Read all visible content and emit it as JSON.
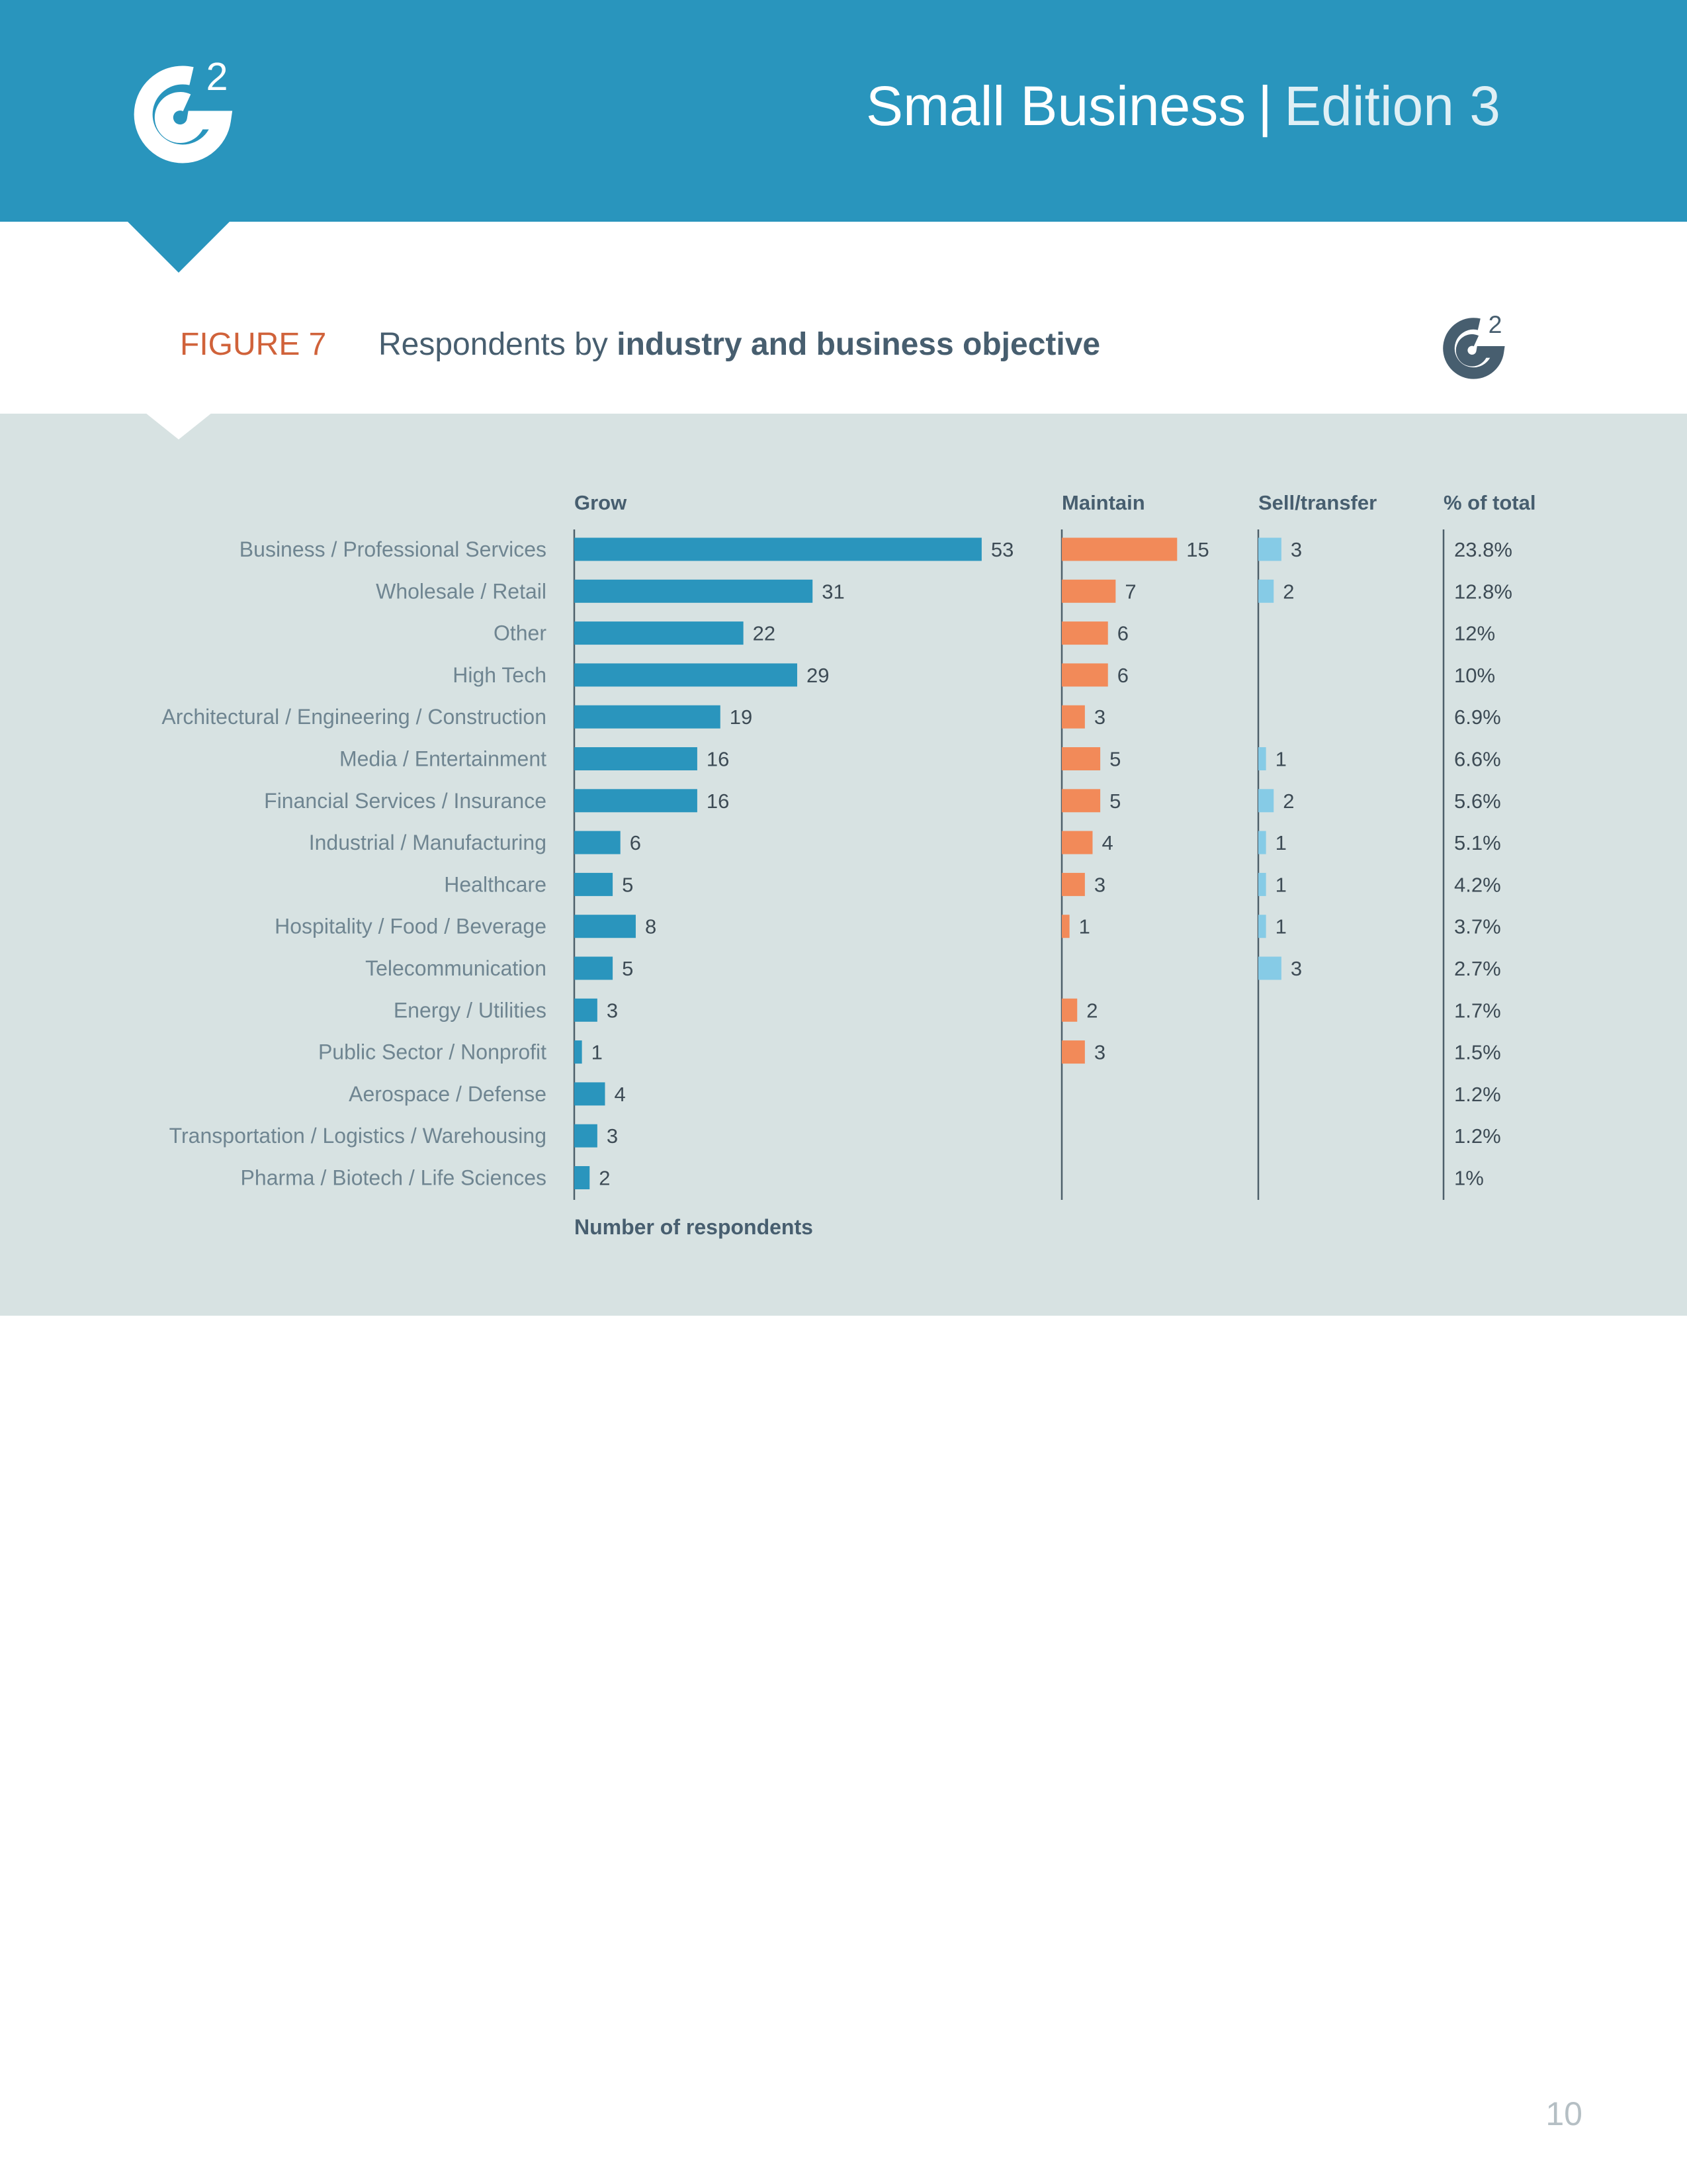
{
  "header": {
    "title_strong": "Small Business",
    "separator": "|",
    "title_light": "Edition 3"
  },
  "logo": {
    "digit": "2"
  },
  "figure": {
    "label": "FIGURE 7",
    "title_plain": "Respondents by",
    "title_strong": "industry and business objective"
  },
  "colors": {
    "header": "#2995bd",
    "grow": "#2a95bd",
    "maintain": "#f28a59",
    "sell": "#86cbe6",
    "panel": "#d7e2e2",
    "figure_label": "#d0623a",
    "text": "#475e6f"
  },
  "chart_data": {
    "type": "bar",
    "xlabel": "Number of respondents",
    "categories": [
      "Business / Professional Services",
      "Wholesale / Retail",
      "Other",
      "High Tech",
      "Architectural / Engineering / Construction",
      "Media / Entertainment",
      "Financial Services / Insurance",
      "Industrial / Manufacturing",
      "Healthcare",
      "Hospitality / Food / Beverage",
      "Telecommunication",
      "Energy / Utilities",
      "Public Sector / Nonprofit",
      "Aerospace / Defense",
      "Transportation / Logistics / Warehousing",
      "Pharma / Biotech / Life Sciences"
    ],
    "series": [
      {
        "name": "Grow",
        "values": [
          53,
          31,
          22,
          29,
          19,
          16,
          16,
          6,
          5,
          8,
          5,
          3,
          1,
          4,
          3,
          2
        ]
      },
      {
        "name": "Maintain",
        "values": [
          15,
          7,
          6,
          6,
          3,
          5,
          5,
          4,
          3,
          1,
          null,
          2,
          3,
          null,
          null,
          null
        ]
      },
      {
        "name": "Sell/transfer",
        "values": [
          3,
          2,
          null,
          null,
          null,
          1,
          2,
          1,
          1,
          1,
          3,
          null,
          null,
          null,
          null,
          null
        ]
      }
    ],
    "percent_column": {
      "name": "% of total",
      "values": [
        "23.8%",
        "12.8%",
        "12%",
        "10%",
        "6.9%",
        "6.6%",
        "5.6%",
        "5.1%",
        "4.2%",
        "3.7%",
        "2.7%",
        "1.7%",
        "1.5%",
        "1.2%",
        "1.2%",
        "1%"
      ]
    }
  },
  "page": {
    "number": "10"
  }
}
